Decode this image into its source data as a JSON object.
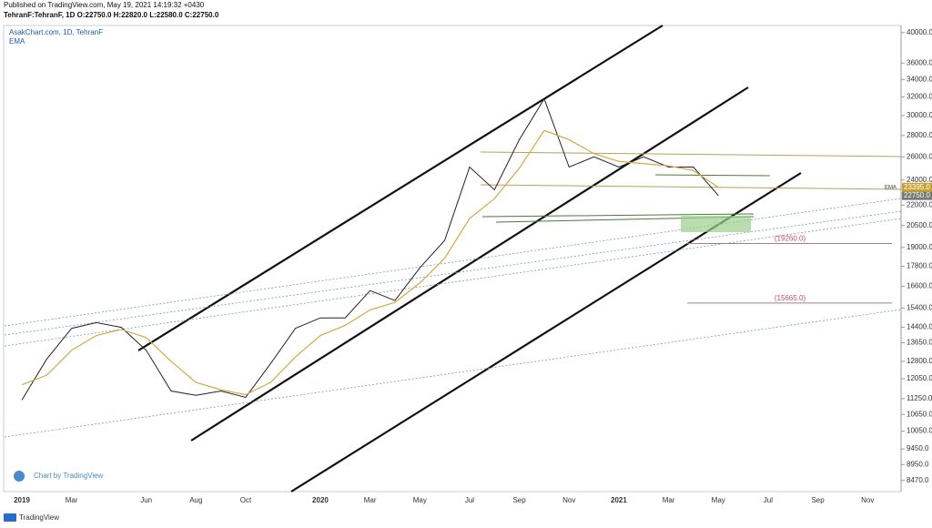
{
  "header": {
    "published": "Published on TradingView.com, May 19, 2021 14:19:32 +0430",
    "ohlc": "TehranF:TehranF, 1D  O:22750.0  H:22820.0  L:22580.0  C:22750.0"
  },
  "chart_data": {
    "type": "line",
    "title": "AsakChart.com, 1D, TehranF",
    "subtitle": "EMA",
    "categories": [
      "2019",
      null,
      "Mar",
      null,
      null,
      "Jun",
      null,
      "Aug",
      null,
      "Oct",
      null,
      null,
      "2020",
      null,
      "Mar",
      null,
      "May",
      null,
      "Jul",
      null,
      "Sep",
      null,
      "Nov",
      null,
      "2021",
      null,
      "Mar",
      null,
      "May",
      null,
      "Jul",
      null,
      "Sep",
      null,
      "Nov",
      null
    ],
    "series": [
      {
        "name": "TehranF",
        "color": "#222222",
        "values": [
          11190,
          12900,
          14350,
          14640,
          14400,
          13300,
          11550,
          11380,
          11550,
          11300,
          12700,
          14350,
          14880,
          14880,
          16360,
          15800,
          17700,
          19470,
          25100,
          23200,
          27600,
          31800,
          25100,
          26000,
          25100,
          26000,
          25100,
          25100,
          22750,
          null,
          null,
          null,
          null,
          null,
          null,
          null
        ],
        "last_label": "22750.0"
      },
      {
        "name": "EMA",
        "color": "#d4a84a",
        "values": [
          11800,
          12200,
          13300,
          14000,
          14300,
          13900,
          12800,
          11900,
          11600,
          11400,
          11900,
          13000,
          14000,
          14500,
          15300,
          15700,
          16800,
          18300,
          21000,
          22500,
          25000,
          28500,
          27600,
          26300,
          25600,
          25400,
          25200,
          24800,
          23395,
          null,
          null,
          null,
          null,
          null,
          null,
          null
        ],
        "last_label": "23395.0"
      }
    ],
    "log_scale": true,
    "ylim": [
      8150,
      41000
    ],
    "yticks": [
      {
        "value": 40000,
        "label": "40000.0"
      },
      {
        "value": 36000,
        "label": "36000.0"
      },
      {
        "value": 34000,
        "label": "34000.0"
      },
      {
        "value": 32000,
        "label": "32000.0"
      },
      {
        "value": 30000,
        "label": "30000.0"
      },
      {
        "value": 28000,
        "label": "28000.0"
      },
      {
        "value": 26000,
        "label": "26000.0"
      },
      {
        "value": 24000,
        "label": "24000.0"
      },
      {
        "value": 22000,
        "label": "22000.0"
      },
      {
        "value": 20500,
        "label": "20500.0"
      },
      {
        "value": 19000,
        "label": "19000.0"
      },
      {
        "value": 17800,
        "label": "17800.0"
      },
      {
        "value": 16600,
        "label": "16600.0"
      },
      {
        "value": 15400,
        "label": "15400.0"
      },
      {
        "value": 14400,
        "label": "14400.0"
      },
      {
        "value": 13650,
        "label": "13650.0"
      },
      {
        "value": 12800,
        "label": "12800.0"
      },
      {
        "value": 12050,
        "label": "12050.0"
      },
      {
        "value": 11250,
        "label": "11250.0"
      },
      {
        "value": 10650,
        "label": "10650.0"
      },
      {
        "value": 10050,
        "label": "10050.0"
      },
      {
        "value": 9450,
        "label": "9450.0"
      },
      {
        "value": 8950,
        "label": "8950.0"
      },
      {
        "value": 8470,
        "label": "8470.0"
      }
    ],
    "levels": [
      {
        "value": 19260,
        "label": "(19260.0)"
      },
      {
        "value": 15665,
        "label": "(15665.0)"
      }
    ],
    "footer": "Chart by TradingView"
  },
  "brand": "TradingView"
}
